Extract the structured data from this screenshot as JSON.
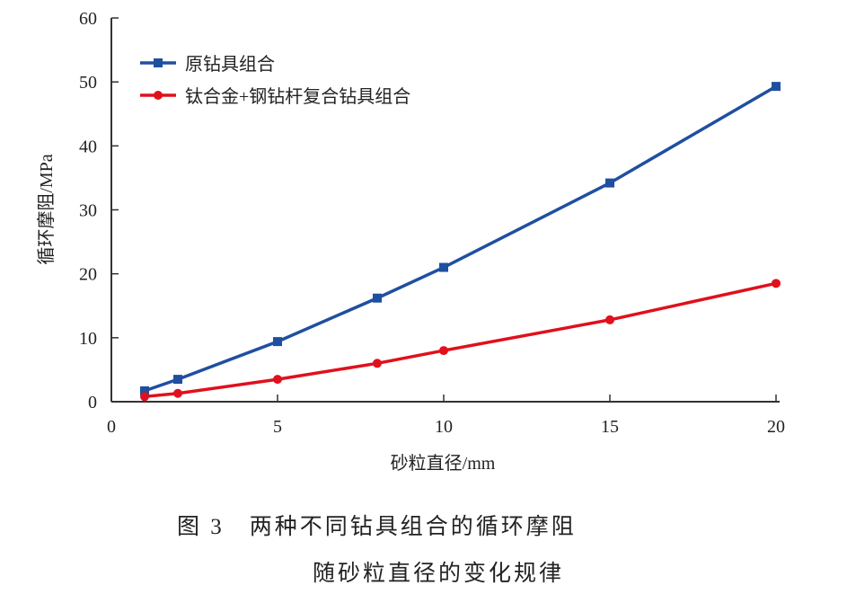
{
  "chart_data": {
    "type": "line",
    "xlabel": "砂粒直径/mm",
    "ylabel": "循环摩阻/MPa",
    "xlim": [
      0,
      20
    ],
    "ylim": [
      0,
      60
    ],
    "xticks": [
      0,
      5,
      10,
      15,
      20
    ],
    "yticks": [
      0,
      10,
      20,
      30,
      40,
      50,
      60
    ],
    "grid": false,
    "legend_position": "top-left",
    "series": [
      {
        "name": "原钻具组合",
        "color": "#1f4fa0",
        "marker": "square",
        "x": [
          1,
          2,
          5,
          8,
          10,
          15,
          20
        ],
        "y": [
          1.7,
          3.5,
          9.4,
          16.2,
          21.0,
          34.2,
          49.3
        ]
      },
      {
        "name": "钛合金+钢钻杆复合钻具组合",
        "color": "#e0101c",
        "marker": "circle",
        "x": [
          1,
          2,
          5,
          8,
          10,
          15,
          20
        ],
        "y": [
          0.8,
          1.3,
          3.5,
          6.0,
          8.0,
          12.8,
          18.5
        ]
      }
    ]
  },
  "caption": {
    "line1": "图 3　两种不同钻具组合的循环摩阻",
    "line2": "随砂粒直径的变化规律"
  }
}
